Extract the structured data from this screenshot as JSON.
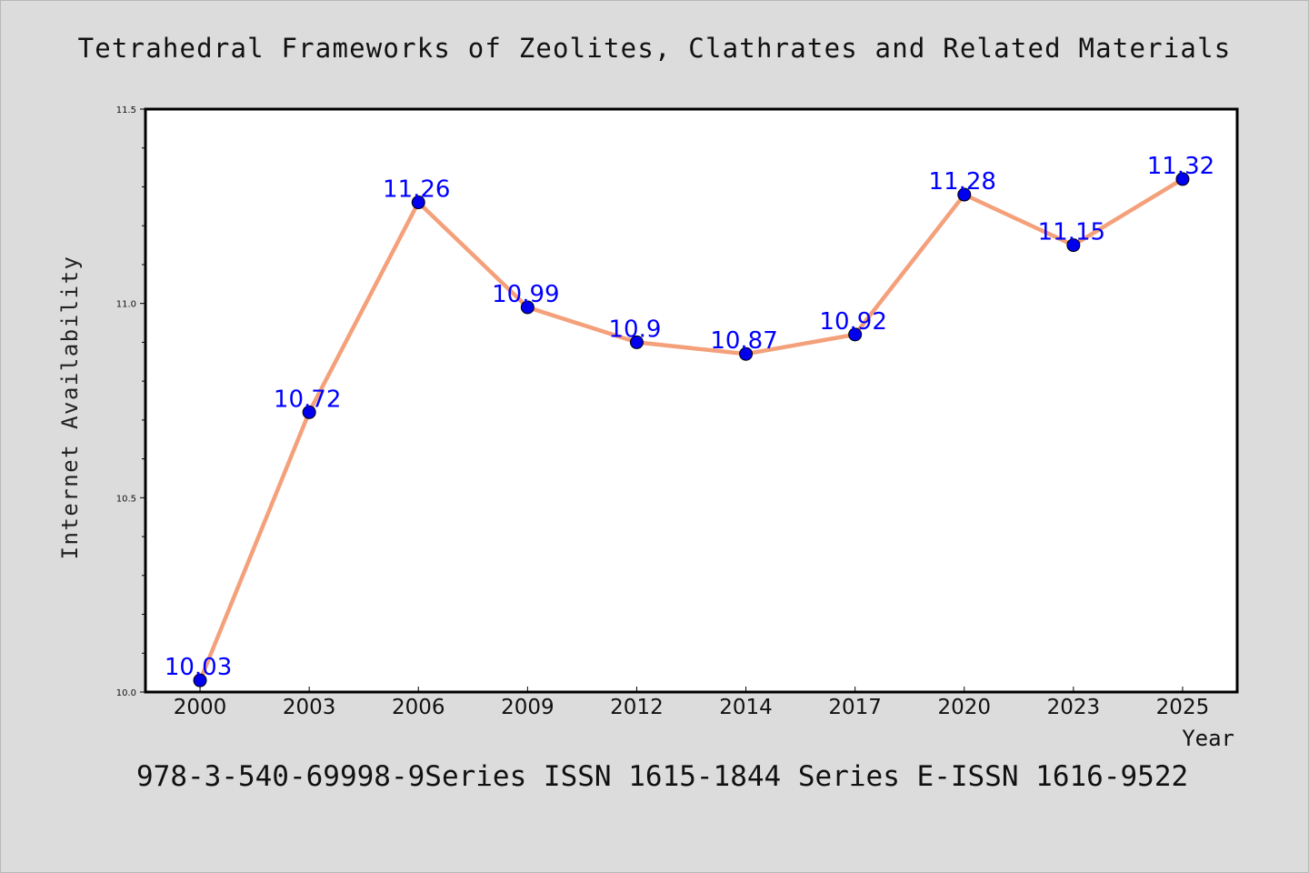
{
  "chart_data": {
    "type": "line",
    "title": "Tetrahedral Frameworks of Zeolites, Clathrates and Related Materials",
    "subtitle": "978-3-540-69998-9Series ISSN 1615-1844 Series E-ISSN 1616-9522",
    "xlabel": "Year",
    "ylabel": "Internet Availability",
    "categories": [
      "2000",
      "2003",
      "2006",
      "2009",
      "2012",
      "2014",
      "2017",
      "2020",
      "2023",
      "2025"
    ],
    "series": [
      {
        "values": [
          10.03,
          10.72,
          11.26,
          10.99,
          10.9,
          10.87,
          10.92,
          11.28,
          11.15,
          11.32
        ],
        "labels": [
          "10.03",
          "10.72",
          "11.26",
          "10.99",
          "10.9",
          "10.87",
          "10.92",
          "11.28",
          "11.15",
          "11.32"
        ]
      }
    ],
    "ylim": [
      10.0,
      11.5
    ],
    "yticks": [
      "10.0",
      "10.5",
      "11.0",
      "11.5"
    ],
    "grid": false,
    "legend": "none",
    "colors": {
      "line": "#f4a07a",
      "marker": "#0000ee",
      "data_label": "#0000ff",
      "background": "#dcdcdc",
      "plot_background": "#ffffff"
    }
  }
}
